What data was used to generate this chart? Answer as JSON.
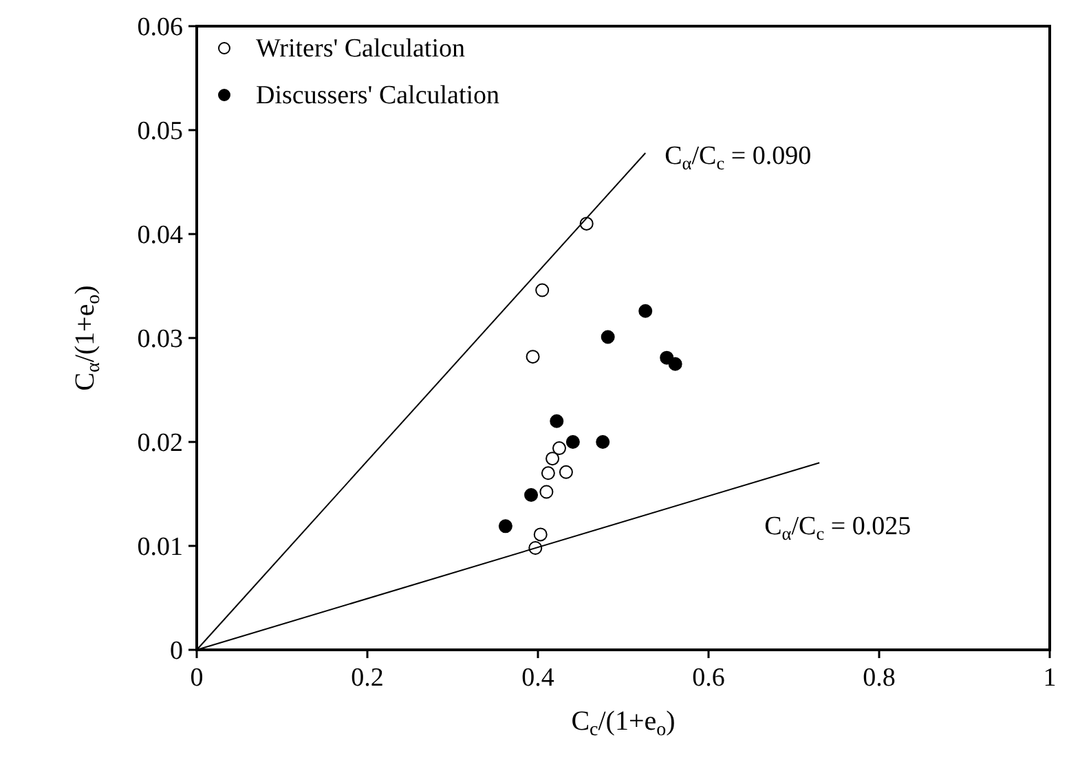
{
  "chart_data": {
    "type": "scatter",
    "xlabel": "C$_{c}$/(1+e$_{o}$)",
    "ylabel": "C$_{α}$/(1+e$_{o}$)",
    "xlim": [
      0,
      1
    ],
    "ylim": [
      0,
      0.06
    ],
    "xticks": [
      0,
      0.2,
      0.4,
      0.6,
      0.8,
      1
    ],
    "yticks": [
      0,
      0.01,
      0.02,
      0.03,
      0.04,
      0.05,
      0.06
    ],
    "legend": "top left",
    "grid": false,
    "series": [
      {
        "name": "Writers' Calculation",
        "marker": "circle",
        "color": "#ffffff",
        "x": [
          0.457,
          0.405,
          0.394,
          0.425,
          0.417,
          0.412,
          0.433,
          0.41,
          0.403,
          0.397
        ],
        "values": [
          0.041,
          0.0346,
          0.0282,
          0.0194,
          0.0184,
          0.017,
          0.0171,
          0.0152,
          0.0111,
          0.0098
        ]
      },
      {
        "name": "Discussers' Calculation",
        "marker": "circle",
        "color": "#000000",
        "x": [
          0.526,
          0.482,
          0.551,
          0.561,
          0.422,
          0.441,
          0.476,
          0.392,
          0.362
        ],
        "values": [
          0.0326,
          0.0301,
          0.0281,
          0.0275,
          0.022,
          0.02,
          0.02,
          0.0149,
          0.0119
        ]
      },
      {
        "type": "line",
        "color": "#000000",
        "marker": "none",
        "line_style": "solid",
        "x": [
          0,
          0.526
        ],
        "values": [
          0,
          0.0478
        ]
      },
      {
        "type": "line",
        "color": "#000000",
        "marker": "none",
        "line_style": "solid",
        "x": [
          0,
          0.73
        ],
        "values": [
          0,
          0.018
        ]
      }
    ],
    "annotations": [
      {
        "text": "C$_{α}$/C$_{c}$ = 0.090",
        "x": 0.526,
        "y": 0.0478
      },
      {
        "text": "C$_{α}$/C$_{c}$ = 0.025",
        "x": 0.73,
        "y": 0.018
      }
    ]
  }
}
